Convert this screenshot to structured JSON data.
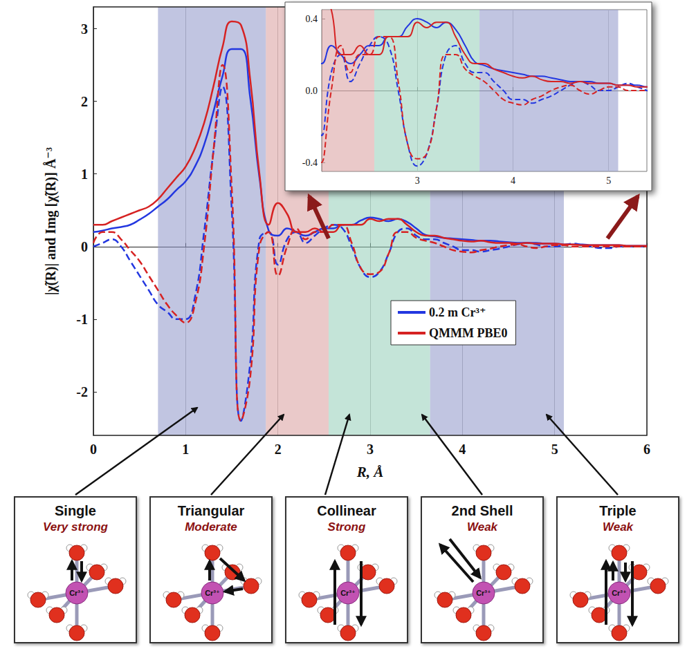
{
  "chart_data": {
    "type": "line",
    "xlabel": "R, Å",
    "ylabel": "|χ̃(R)| and Img [χ̃(R)] Å⁻³",
    "xlim": [
      0,
      6
    ],
    "xticks": [
      0,
      1,
      2,
      3,
      4,
      5,
      6
    ],
    "ylim": [
      -2.6,
      3.3
    ],
    "yticks": [
      -2,
      -1,
      0,
      1,
      2,
      3
    ],
    "grid": true,
    "legend": "lower right",
    "x": [
      0,
      0.1,
      0.2,
      0.3,
      0.4,
      0.5,
      0.6,
      0.7,
      0.8,
      0.9,
      1.0,
      1.1,
      1.2,
      1.3,
      1.4,
      1.5,
      1.6,
      1.7,
      1.8,
      1.9,
      2.0,
      2.1,
      2.2,
      2.3,
      2.4,
      2.5,
      2.6,
      2.7,
      2.8,
      2.9,
      3.0,
      3.1,
      3.2,
      3.3,
      3.4,
      3.5,
      3.6,
      3.7,
      3.8,
      3.9,
      4.0,
      4.1,
      4.2,
      4.3,
      4.4,
      4.5,
      4.6,
      4.7,
      4.8,
      4.9,
      5.0,
      5.1,
      5.2,
      5.3,
      5.4,
      5.5,
      5.6,
      5.7,
      5.8,
      5.9,
      6.0
    ],
    "series": [
      {
        "name": "0.2 m Cr³⁺",
        "color": "#2337e0",
        "values": [
          0.2,
          0.22,
          0.25,
          0.27,
          0.3,
          0.37,
          0.45,
          0.55,
          0.65,
          0.78,
          0.9,
          1.1,
          1.4,
          1.85,
          2.35,
          2.72,
          2.72,
          2.05,
          0.95,
          0.22,
          0.15,
          0.25,
          0.2,
          0.15,
          0.2,
          0.25,
          0.25,
          0.3,
          0.3,
          0.36,
          0.4,
          0.38,
          0.35,
          0.38,
          0.34,
          0.25,
          0.16,
          0.14,
          0.12,
          0.11,
          0.1,
          0.09,
          0.08,
          0.08,
          0.07,
          0.06,
          0.05,
          0.05,
          0.05,
          0.04,
          0.04,
          0.03,
          0.03,
          0.03,
          0.02,
          0.02,
          0.02,
          0.02,
          0.01,
          0.01,
          0.01
        ],
        "imag_values": [
          0.0,
          0.05,
          0.1,
          0.0,
          -0.2,
          -0.4,
          -0.6,
          -0.8,
          -0.9,
          -1.0,
          -1.0,
          -0.7,
          0.2,
          1.3,
          2.2,
          0.5,
          -2.4,
          -1.6,
          0.1,
          0.2,
          -0.25,
          0.1,
          0.2,
          0.05,
          0.15,
          0.25,
          0.3,
          0.25,
          0.0,
          -0.3,
          -0.42,
          -0.35,
          -0.1,
          0.2,
          0.25,
          0.15,
          0.1,
          0.1,
          0.05,
          0.0,
          -0.05,
          -0.05,
          -0.07,
          -0.05,
          -0.03,
          0.0,
          0.03,
          0.05,
          0.03,
          0.0,
          0.0,
          0.02,
          0.04,
          0.02,
          0.0,
          -0.02,
          -0.02,
          0.0,
          0.0,
          0.0,
          0.0
        ]
      },
      {
        "name": "QMMM PBE0",
        "color": "#d62222",
        "values": [
          0.3,
          0.3,
          0.35,
          0.4,
          0.45,
          0.5,
          0.55,
          0.65,
          0.8,
          0.95,
          1.1,
          1.35,
          1.7,
          2.2,
          2.75,
          3.1,
          3.05,
          2.3,
          1.0,
          0.3,
          0.6,
          0.45,
          0.2,
          0.2,
          0.25,
          0.2,
          0.2,
          0.3,
          0.3,
          0.3,
          0.38,
          0.35,
          0.38,
          0.38,
          0.3,
          0.2,
          0.15,
          0.15,
          0.12,
          0.1,
          0.08,
          0.07,
          0.08,
          0.06,
          0.05,
          0.05,
          0.04,
          0.05,
          0.04,
          0.04,
          0.04,
          0.03,
          0.03,
          0.02,
          0.02,
          0.02,
          0.02,
          0.02,
          0.01,
          0.01,
          0.01
        ],
        "imag_values": [
          0.05,
          0.2,
          0.2,
          0.1,
          -0.05,
          -0.2,
          -0.4,
          -0.6,
          -0.8,
          -0.95,
          -1.05,
          -0.8,
          0.0,
          1.3,
          2.5,
          0.8,
          -2.4,
          -1.8,
          0.0,
          0.2,
          -0.4,
          0.0,
          0.25,
          0.1,
          0.2,
          0.2,
          0.3,
          0.3,
          0.05,
          -0.3,
          -0.38,
          -0.35,
          -0.1,
          0.2,
          0.2,
          0.12,
          0.08,
          0.05,
          0.0,
          -0.05,
          -0.07,
          -0.08,
          -0.05,
          -0.03,
          0.0,
          0.02,
          0.03,
          0.0,
          -0.02,
          0.0,
          0.02,
          0.02,
          0.0,
          0.0,
          0.0,
          0.0,
          0.0,
          0.0,
          0.0,
          0.0,
          0.0
        ]
      }
    ],
    "regions": [
      {
        "x0": 0.7,
        "x1": 1.87,
        "color": "#8e95c9"
      },
      {
        "x0": 1.87,
        "x1": 2.55,
        "color": "#d99c9c"
      },
      {
        "x0": 2.55,
        "x1": 3.65,
        "color": "#94cdb8"
      },
      {
        "x0": 3.65,
        "x1": 5.1,
        "color": "#8e95c9"
      }
    ],
    "inset": {
      "xlim": [
        2,
        5.4
      ],
      "xticks": [
        3,
        4,
        5
      ],
      "ylim": [
        -0.45,
        0.45
      ],
      "yticks": [
        -0.4,
        {
          "value": 0,
          "label": "0.0"
        },
        0.4
      ]
    },
    "center_label": "Cr³⁺",
    "panels": [
      {
        "title": "Single",
        "strength": "Very strong"
      },
      {
        "title": "Triangular",
        "strength": "Moderate"
      },
      {
        "title": "Collinear",
        "strength": "Strong"
      },
      {
        "title": "2nd Shell",
        "strength": "Weak"
      },
      {
        "title": "Triple",
        "strength": "Weak"
      }
    ]
  }
}
